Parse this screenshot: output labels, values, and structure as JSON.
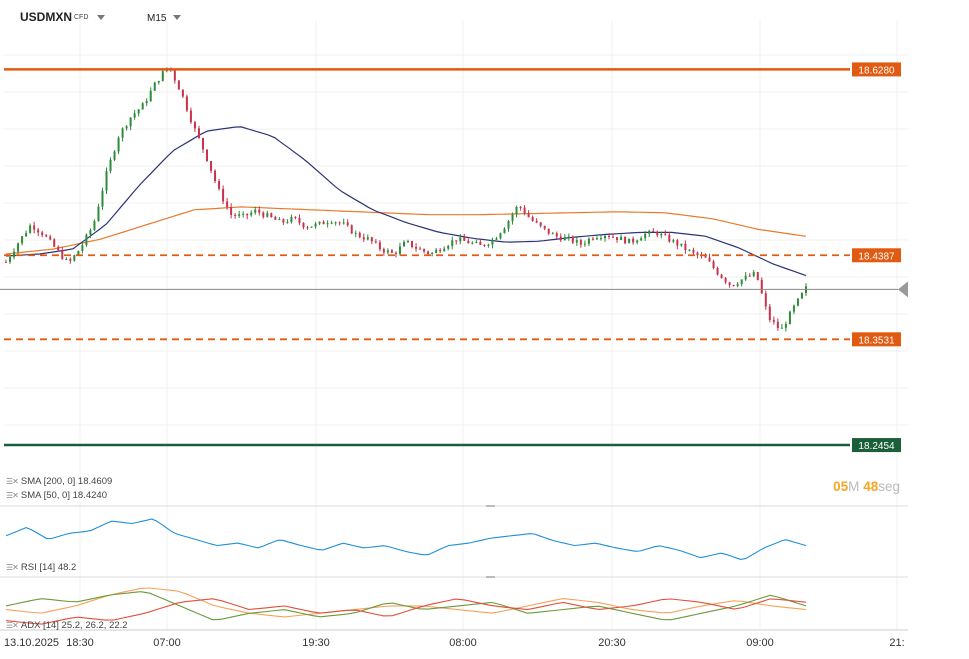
{
  "header": {
    "symbol": "USDMXN",
    "instrument_type": "CFD",
    "timeframe": "M15",
    "icons": [
      "chevron-down-icon",
      "chevron-down-icon"
    ]
  },
  "indicators": {
    "sma200": {
      "label": "SMA [200, 0]",
      "value": "18.4609",
      "color": "#e87a2e"
    },
    "sma50": {
      "label": "SMA [50, 0]",
      "value": "18.4240",
      "color": "#2c3577"
    },
    "rsi": {
      "label": "RSI [14]",
      "value": "48.2",
      "color": "#1f8fd8"
    },
    "adx": {
      "label": "ADX [14]",
      "values": "25.2, 26.2, 22.2"
    }
  },
  "timer": {
    "minutes": "05",
    "min_unit": "M",
    "seconds": "48",
    "sec_unit": "seg"
  },
  "chart_data": {
    "type": "candlestick",
    "colors": {
      "up": "#2e8b3a",
      "down": "#c8324a",
      "accent": "#e15a12",
      "support": "#1b5e3a",
      "crosshair": "#888888"
    },
    "price_axis": {
      "min": 18.22,
      "max": 18.66
    },
    "levels": [
      {
        "value": 18.628,
        "label": "18.6280",
        "style": "solid",
        "color": "#e15a12"
      },
      {
        "value": 18.4387,
        "label": "18.4387",
        "style": "dashed",
        "color": "#e15a12"
      },
      {
        "value": 18.3531,
        "label": "18.3531",
        "style": "dashed",
        "color": "#e15a12"
      },
      {
        "value": 18.2454,
        "label": "18.2454",
        "style": "solid",
        "color": "#1b5e3a"
      }
    ],
    "current_price": 18.404,
    "x_axis": {
      "first_label": "13.10.2025",
      "tick_labels": [
        "18:30",
        "07:00",
        "19:30",
        "08:00",
        "20:30",
        "09:00",
        "21:"
      ]
    },
    "close_path": [
      18.432,
      18.452,
      18.47,
      18.46,
      18.445,
      18.43,
      18.447,
      18.47,
      18.52,
      18.56,
      18.58,
      18.592,
      18.615,
      18.632,
      18.605,
      18.57,
      18.54,
      18.505,
      18.48,
      18.478,
      18.484,
      18.478,
      18.472,
      18.476,
      18.468,
      18.47,
      18.475,
      18.47,
      18.46,
      18.455,
      18.445,
      18.44,
      18.452,
      18.445,
      18.44,
      18.448,
      18.455,
      18.452,
      18.448,
      18.455,
      18.47,
      18.49,
      18.475,
      18.465,
      18.458,
      18.455,
      18.45,
      18.458,
      18.46,
      18.456,
      18.452,
      18.46,
      18.462,
      18.455,
      18.448,
      18.44,
      18.435,
      18.42,
      18.408,
      18.415,
      18.42,
      18.375,
      18.362,
      18.385,
      18.405
    ],
    "sma50_path": [
      18.438,
      18.44,
      18.445,
      18.47,
      18.51,
      18.545,
      18.565,
      18.57,
      18.56,
      18.535,
      18.505,
      18.485,
      18.472,
      18.462,
      18.456,
      18.452,
      18.453,
      18.457,
      18.46,
      18.462,
      18.462,
      18.458,
      18.446,
      18.43,
      18.418
    ],
    "sma200_path": [
      18.44,
      18.445,
      18.455,
      18.47,
      18.485,
      18.488,
      18.486,
      18.484,
      18.482,
      18.48,
      18.48,
      18.481,
      18.482,
      18.483,
      18.482,
      18.476,
      18.465,
      18.458
    ],
    "rsi_path": [
      58,
      65,
      55,
      60,
      62,
      70,
      68,
      72,
      60,
      55,
      50,
      52,
      48,
      55,
      50,
      46,
      52,
      48,
      50,
      45,
      42,
      50,
      52,
      56,
      58,
      60,
      54,
      50,
      52,
      48,
      45,
      50,
      46,
      40,
      44,
      38,
      48,
      55,
      50
    ],
    "adx_lines": [
      {
        "name": "ADX",
        "color": "#f5a25a",
        "values": [
          20,
          18,
          22,
          28,
          32,
          30,
          22,
          18,
          16,
          18,
          20,
          22,
          22,
          20,
          18,
          22,
          26,
          24,
          20,
          18,
          22,
          25,
          22,
          20
        ]
      },
      {
        "name": "+DI",
        "color": "#6a9a3a",
        "values": [
          22,
          26,
          24,
          28,
          30,
          22,
          14,
          18,
          20,
          16,
          18,
          24,
          20,
          22,
          24,
          18,
          20,
          22,
          18,
          14,
          18,
          22,
          28,
          22
        ]
      },
      {
        "name": "-DI",
        "color": "#e0503c",
        "values": [
          14,
          12,
          16,
          14,
          18,
          24,
          26,
          20,
          22,
          18,
          20,
          16,
          22,
          26,
          22,
          20,
          24,
          20,
          22,
          26,
          24,
          20,
          26,
          24
        ]
      }
    ]
  }
}
